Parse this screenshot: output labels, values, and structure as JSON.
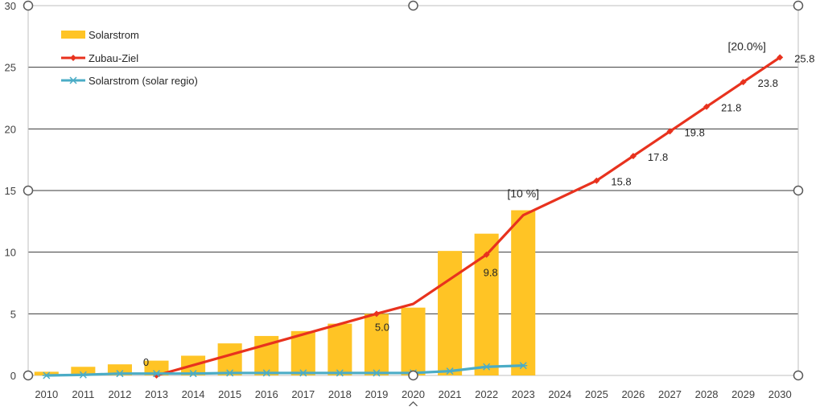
{
  "chart_data": {
    "type": "bar",
    "categories": [
      "2010",
      "2011",
      "2012",
      "2013",
      "2014",
      "2015",
      "2016",
      "2017",
      "2018",
      "2019",
      "2020",
      "2021",
      "2022",
      "2023",
      "2024",
      "2025",
      "2026",
      "2027",
      "2028",
      "2029",
      "2030"
    ],
    "ylim": [
      0,
      30
    ],
    "yticks": [
      "0",
      "5",
      "10",
      "15",
      "20",
      "25",
      "30"
    ],
    "grid": true,
    "legend_position": "top-left",
    "series": [
      {
        "name": "Solarstrom",
        "kind": "bar",
        "color": "#FFC425",
        "values": [
          0.3,
          0.7,
          0.9,
          1.2,
          1.6,
          2.6,
          3.2,
          3.6,
          4.2,
          5.0,
          5.5,
          10.1,
          11.5,
          13.4,
          null,
          null,
          null,
          null,
          null,
          null,
          null
        ]
      },
      {
        "name": "Zubau-Ziel",
        "kind": "line",
        "color": "#E8321E",
        "x": [
          "2013",
          "2019",
          "2020",
          "2022",
          "2023",
          "2025",
          "2026",
          "2027",
          "2028",
          "2029",
          "2030"
        ],
        "values": [
          0,
          5.0,
          5.8,
          9.8,
          13.0,
          15.8,
          17.8,
          19.8,
          21.8,
          23.8,
          25.8
        ],
        "markers": [
          "2013",
          "2019",
          "2022",
          "2025",
          "2026",
          "2027",
          "2028",
          "2029",
          "2030"
        ]
      },
      {
        "name": "Solarstrom (solar regio)",
        "kind": "line",
        "color": "#4BACC6",
        "x": [
          "2010",
          "2011",
          "2012",
          "2013",
          "2014",
          "2015",
          "2016",
          "2017",
          "2018",
          "2019",
          "2020",
          "2021",
          "2022",
          "2023"
        ],
        "values": [
          0.0,
          0.05,
          0.15,
          0.15,
          0.15,
          0.2,
          0.2,
          0.2,
          0.2,
          0.2,
          0.2,
          0.35,
          0.7,
          0.8
        ]
      }
    ],
    "data_labels": [
      {
        "x": "2013",
        "y": 0,
        "text": "0"
      },
      {
        "x": "2019",
        "y": 5.0,
        "text": "5.0"
      },
      {
        "x": "2022",
        "y": 9.8,
        "text": "9.8"
      },
      {
        "x": "2025",
        "y": 15.8,
        "text": "15.8"
      },
      {
        "x": "2026",
        "y": 17.8,
        "text": "17.8"
      },
      {
        "x": "2027",
        "y": 19.8,
        "text": "19.8"
      },
      {
        "x": "2028",
        "y": 21.8,
        "text": "21.8"
      },
      {
        "x": "2029",
        "y": 23.8,
        "text": "23.8"
      },
      {
        "x": "2030",
        "y": 25.8,
        "text": "25.8"
      }
    ],
    "annotations": [
      {
        "x": "2023",
        "y": 13.4,
        "text": "[10 %]"
      },
      {
        "x": "2030",
        "y": 25.8,
        "text": "[20.0%]"
      }
    ]
  }
}
